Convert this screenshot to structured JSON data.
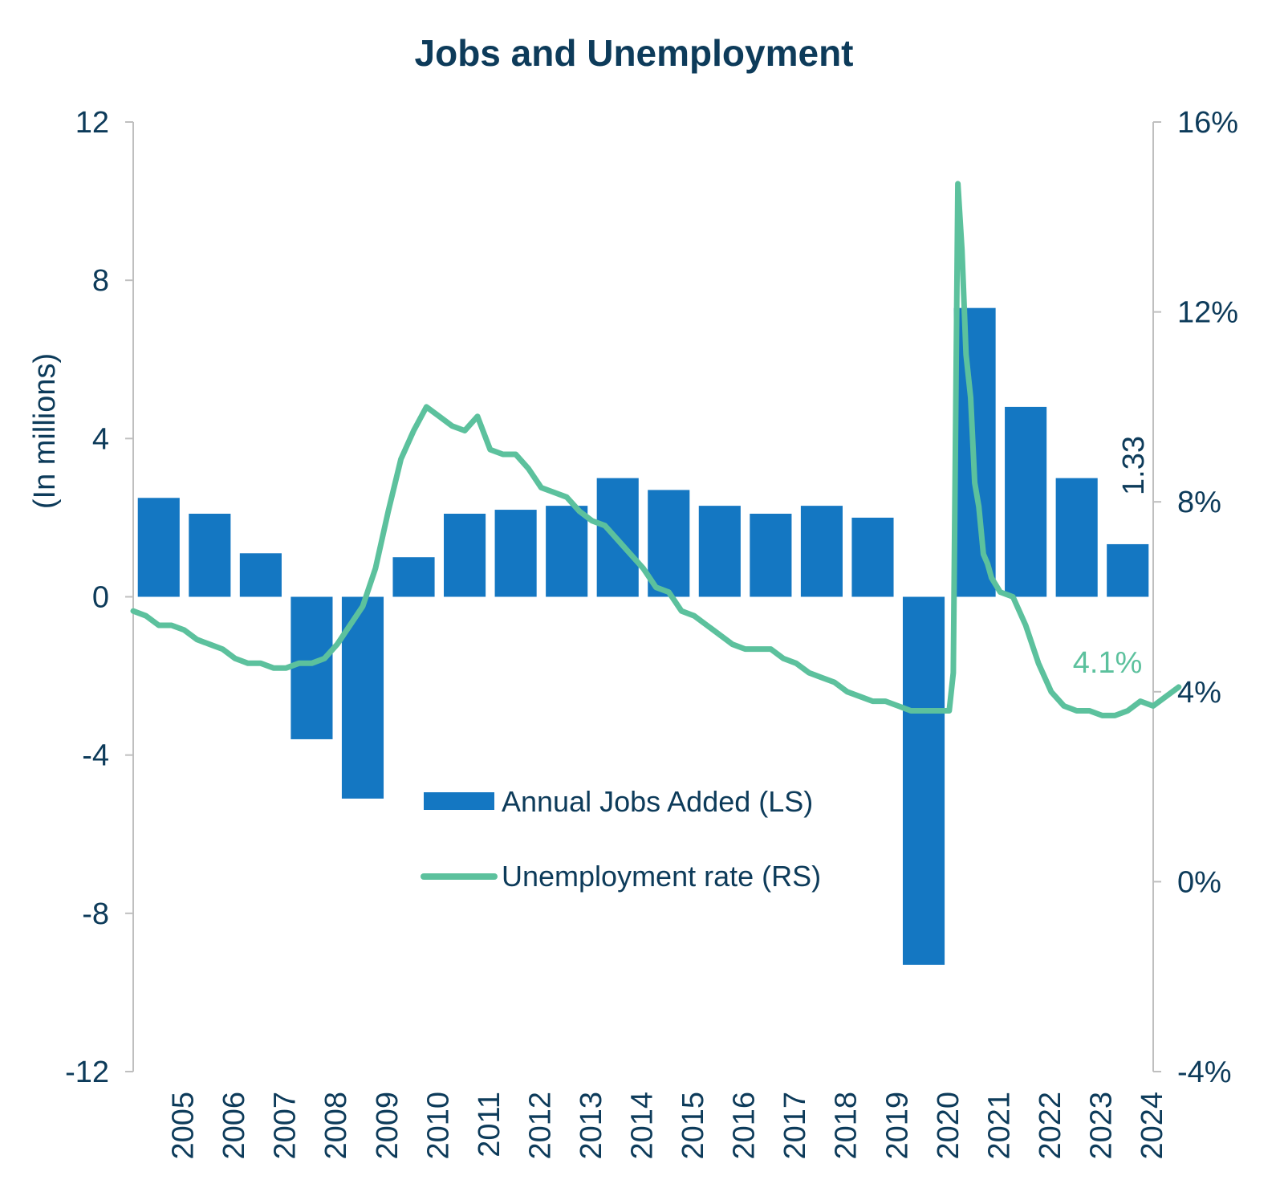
{
  "chart_data": {
    "type": "bar+line",
    "title": "Jobs and Unemployment",
    "ylabel_left": "(In millions)",
    "ylim_left": [
      -12,
      12
    ],
    "yticks_left": [
      "12",
      "8",
      "4",
      "0",
      "-4",
      "-8",
      "-12"
    ],
    "ylim_right": [
      -4,
      16
    ],
    "yticks_right": [
      "16%",
      "12%",
      "8%",
      "4%",
      "0%",
      "-4%"
    ],
    "x_tick_labels": [
      "2005",
      "2006",
      "2007",
      "2008",
      "2009",
      "2010",
      "2011",
      "2012",
      "2013",
      "2014",
      "2015",
      "2016",
      "2017",
      "2018",
      "2019",
      "2020",
      "2021",
      "2022",
      "2023",
      "2024"
    ],
    "categories": [
      "2005",
      "2006",
      "2007",
      "2008",
      "2009",
      "2010",
      "2011",
      "2012",
      "2013",
      "2014",
      "2015",
      "2016",
      "2017",
      "2018",
      "2019",
      "2020",
      "2021",
      "2022",
      "2023",
      "2024"
    ],
    "series": [
      {
        "name": "Annual Jobs Added (LS)",
        "type": "bar",
        "axis": "left",
        "color": "#1477c2",
        "values": [
          2.5,
          2.1,
          1.1,
          -3.6,
          -5.1,
          1.0,
          2.1,
          2.2,
          2.3,
          3.0,
          2.7,
          2.3,
          2.1,
          2.3,
          2.0,
          -9.3,
          7.3,
          4.8,
          3.0,
          1.33
        ]
      },
      {
        "name": "Unemployment rate (RS)",
        "type": "line",
        "axis": "right",
        "color": "#5cc19d",
        "x": [
          2004.0,
          2004.25,
          2004.5,
          2004.75,
          2005.0,
          2005.25,
          2005.5,
          2005.75,
          2006.0,
          2006.25,
          2006.5,
          2006.75,
          2007.0,
          2007.25,
          2007.5,
          2007.75,
          2008.0,
          2008.25,
          2008.5,
          2008.75,
          2009.0,
          2009.25,
          2009.5,
          2009.75,
          2010.0,
          2010.25,
          2010.5,
          2010.75,
          2011.0,
          2011.25,
          2011.5,
          2011.75,
          2012.0,
          2012.25,
          2012.5,
          2012.75,
          2013.0,
          2013.25,
          2013.5,
          2013.75,
          2014.0,
          2014.25,
          2014.5,
          2014.75,
          2015.0,
          2015.25,
          2015.5,
          2015.75,
          2016.0,
          2016.25,
          2016.5,
          2016.75,
          2017.0,
          2017.25,
          2017.5,
          2017.75,
          2018.0,
          2018.25,
          2018.5,
          2018.75,
          2019.0,
          2019.25,
          2019.5,
          2019.75,
          2020.0,
          2020.08,
          2020.17,
          2020.25,
          2020.33,
          2020.42,
          2020.5,
          2020.58,
          2020.67,
          2020.75,
          2020.83,
          2021.0,
          2021.25,
          2021.5,
          2021.75,
          2022.0,
          2022.25,
          2022.5,
          2022.75,
          2023.0,
          2023.25,
          2023.5,
          2023.75,
          2024.0,
          2024.25,
          2024.5
        ],
        "values": [
          5.7,
          5.6,
          5.4,
          5.4,
          5.3,
          5.1,
          5.0,
          4.9,
          4.7,
          4.6,
          4.6,
          4.5,
          4.5,
          4.6,
          4.6,
          4.7,
          5.0,
          5.4,
          5.8,
          6.6,
          7.8,
          8.9,
          9.5,
          10.0,
          9.8,
          9.6,
          9.5,
          9.8,
          9.1,
          9.0,
          9.0,
          8.7,
          8.3,
          8.2,
          8.1,
          7.8,
          7.6,
          7.5,
          7.2,
          6.9,
          6.6,
          6.2,
          6.1,
          5.7,
          5.6,
          5.4,
          5.2,
          5.0,
          4.9,
          4.9,
          4.9,
          4.7,
          4.6,
          4.4,
          4.3,
          4.2,
          4.0,
          3.9,
          3.8,
          3.8,
          3.7,
          3.6,
          3.6,
          3.6,
          3.6,
          4.4,
          14.7,
          13.3,
          11.1,
          10.2,
          8.4,
          7.9,
          6.9,
          6.7,
          6.4,
          6.1,
          6.0,
          5.4,
          4.6,
          4.0,
          3.7,
          3.6,
          3.6,
          3.5,
          3.5,
          3.6,
          3.8,
          3.7,
          3.9,
          4.1
        ]
      }
    ],
    "annotations": [
      {
        "series": "Annual Jobs Added (LS)",
        "text": "1.33"
      },
      {
        "series": "Unemployment rate (RS)",
        "text": "4.1%"
      }
    ],
    "legend": "center",
    "grid": false
  }
}
